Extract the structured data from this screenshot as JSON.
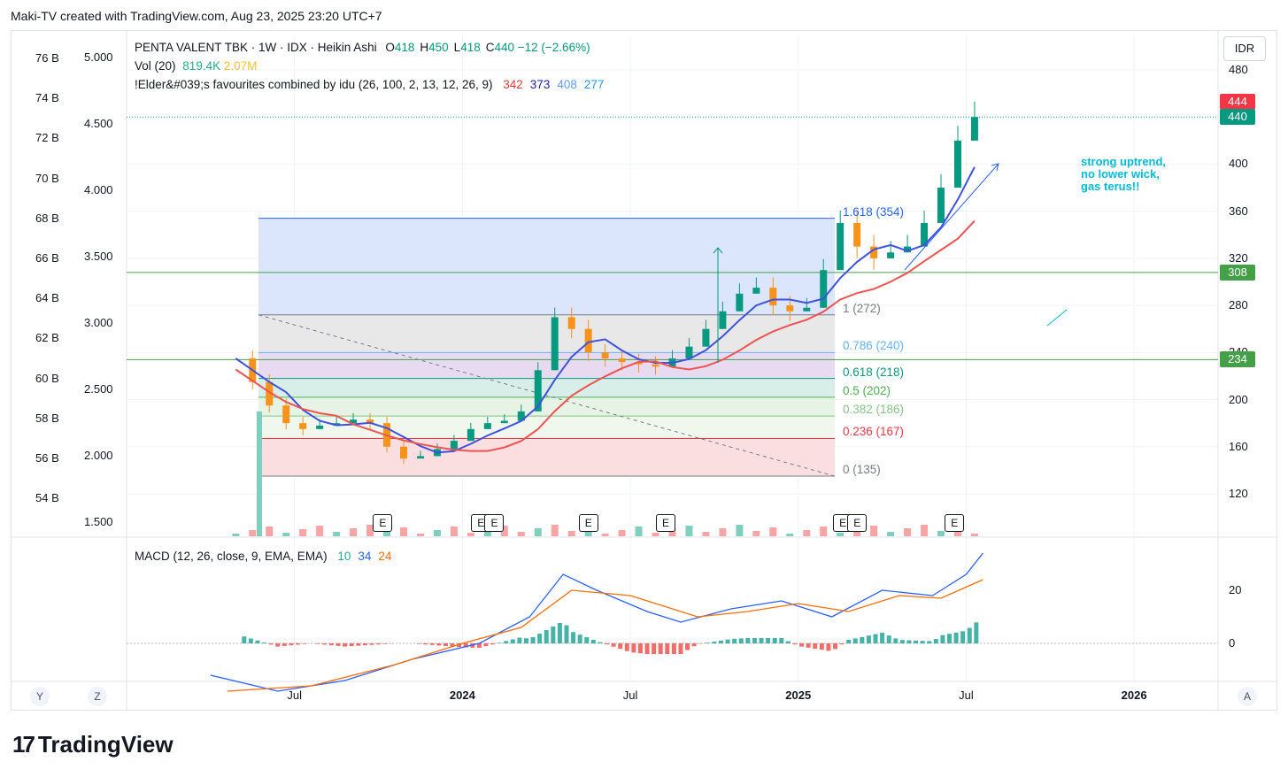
{
  "header": {
    "credit": "Maki-TV created with TradingView.com, Aug 23, 2025 23:20 UTC+7"
  },
  "legend": {
    "symbol": "PENTA VALENT TBK · 1W · IDX · Heikin Ashi",
    "ohlc": [
      {
        "k": "O",
        "v": "418"
      },
      {
        "k": "H",
        "v": "450"
      },
      {
        "k": "L",
        "v": "418"
      },
      {
        "k": "C",
        "v": "440"
      }
    ],
    "change": "−12 (−2.66%)",
    "vol_label": "Vol (20)",
    "vol_value": "819.4K",
    "vol_ma": "2.07M",
    "indicator_label": "!Elder&#039;s favourites combined by idu (26, 100, 2, 13, 12, 26, 9)",
    "indicator_values": [
      {
        "v": "342",
        "color": "#e53935"
      },
      {
        "v": "373",
        "color": "#1e22aa"
      },
      {
        "v": "408",
        "color": "#5b9cf6"
      },
      {
        "v": "277",
        "color": "#2196f3"
      }
    ],
    "macd_label": "MACD (12, 26, close, 9, EMA, EMA)",
    "macd_values": [
      {
        "v": "10",
        "color": "#22ab94"
      },
      {
        "v": "34",
        "color": "#2962ff"
      },
      {
        "v": "24",
        "color": "#ff6d00"
      }
    ]
  },
  "currency": "IDR",
  "right_axis": {
    "ticks": [
      {
        "v": 120,
        "label": "120"
      },
      {
        "v": 160,
        "label": "160"
      },
      {
        "v": 200,
        "label": "200"
      },
      {
        "v": 240,
        "label": "240"
      },
      {
        "v": 280,
        "label": "280"
      },
      {
        "v": 320,
        "label": "320"
      },
      {
        "v": 360,
        "label": "360"
      },
      {
        "v": 400,
        "label": "400"
      },
      {
        "v": 480,
        "label": "480"
      }
    ],
    "tags": [
      {
        "value": "444",
        "price": 444,
        "color": "#f23645"
      },
      {
        "value": "440",
        "price": 440,
        "color": "#089981"
      },
      {
        "value": "308",
        "price": 308,
        "color": "#43a047"
      },
      {
        "value": "234",
        "price": 234,
        "color": "#43a047"
      }
    ]
  },
  "left_axis_outer": [
    "76 B",
    "74 B",
    "72 B",
    "70 B",
    "68 B",
    "66 B",
    "64 B",
    "62 B",
    "60 B",
    "58 B",
    "56 B",
    "54 B"
  ],
  "left_axis_inner": [
    "5.000",
    "4.500",
    "4.000",
    "3.500",
    "3.000",
    "2.500",
    "2.000",
    "1.500"
  ],
  "macd_axis": [
    {
      "v": 20,
      "label": "20"
    },
    {
      "v": 0,
      "label": "0"
    }
  ],
  "time_axis": [
    {
      "label": "Jul",
      "t": 0.2,
      "bold": false
    },
    {
      "label": "2024",
      "t": 0.4,
      "bold": true
    },
    {
      "label": "Jul",
      "t": 0.6,
      "bold": false
    },
    {
      "label": "2025",
      "t": 0.8,
      "bold": true
    },
    {
      "label": "Jul",
      "t": 1.0,
      "bold": false
    },
    {
      "label": "2026",
      "t": 1.2,
      "bold": true
    }
  ],
  "fib_levels": [
    {
      "ratio": "1.618",
      "price": 354,
      "label": "1.618 (354)",
      "color": "#2962ff"
    },
    {
      "ratio": "1",
      "price": 272,
      "label": "1 (272)",
      "color": "#787b86"
    },
    {
      "ratio": "0.786",
      "price": 240,
      "label": "0.786 (240)",
      "color": "#64b5f6"
    },
    {
      "ratio": "0.618",
      "price": 218,
      "label": "0.618 (218)",
      "color": "#089981"
    },
    {
      "ratio": "0.5",
      "price": 202,
      "label": "0.5 (202)",
      "color": "#4caf50"
    },
    {
      "ratio": "0.382",
      "price": 186,
      "label": "0.382 (186)",
      "color": "#81c784"
    },
    {
      "ratio": "0.236",
      "price": 167,
      "label": "0.236 (167)",
      "color": "#f23645"
    },
    {
      "ratio": "0",
      "price": 135,
      "label": "0 (135)",
      "color": "#787b86"
    }
  ],
  "annotation": {
    "lines": [
      "strong uptrend,",
      "no lower wick,",
      "gas terus!!"
    ],
    "color": "#00bcd4"
  },
  "earnings_marker": "E",
  "earnings_t": [
    0.304,
    0.421,
    0.437,
    0.549,
    0.641,
    0.852,
    0.869,
    0.985
  ],
  "corner_buttons": {
    "y": "Y",
    "z": "Z",
    "a": "A"
  },
  "logo_text": "TradingView",
  "chart_data": {
    "type": "candlestick",
    "title": "PENTA VALENT TBK · 1W · IDX · Heikin Ashi",
    "ylim": [
      100,
      500
    ],
    "series_close": [
      {
        "t": 0.13,
        "v": 235
      },
      {
        "t": 0.15,
        "v": 215
      },
      {
        "t": 0.17,
        "v": 195
      },
      {
        "t": 0.19,
        "v": 180
      },
      {
        "t": 0.21,
        "v": 175
      },
      {
        "t": 0.23,
        "v": 178
      },
      {
        "t": 0.25,
        "v": 180
      },
      {
        "t": 0.27,
        "v": 183
      },
      {
        "t": 0.29,
        "v": 180
      },
      {
        "t": 0.31,
        "v": 160
      },
      {
        "t": 0.33,
        "v": 150
      },
      {
        "t": 0.35,
        "v": 152
      },
      {
        "t": 0.37,
        "v": 158
      },
      {
        "t": 0.39,
        "v": 165
      },
      {
        "t": 0.41,
        "v": 175
      },
      {
        "t": 0.43,
        "v": 180
      },
      {
        "t": 0.45,
        "v": 182
      },
      {
        "t": 0.47,
        "v": 190
      },
      {
        "t": 0.49,
        "v": 225
      },
      {
        "t": 0.51,
        "v": 270
      },
      {
        "t": 0.53,
        "v": 260
      },
      {
        "t": 0.55,
        "v": 240
      },
      {
        "t": 0.57,
        "v": 235
      },
      {
        "t": 0.59,
        "v": 232
      },
      {
        "t": 0.61,
        "v": 230
      },
      {
        "t": 0.63,
        "v": 228
      },
      {
        "t": 0.65,
        "v": 235
      },
      {
        "t": 0.67,
        "v": 245
      },
      {
        "t": 0.69,
        "v": 260
      },
      {
        "t": 0.71,
        "v": 275
      },
      {
        "t": 0.73,
        "v": 290
      },
      {
        "t": 0.75,
        "v": 295
      },
      {
        "t": 0.77,
        "v": 280
      },
      {
        "t": 0.79,
        "v": 275
      },
      {
        "t": 0.81,
        "v": 278
      },
      {
        "t": 0.83,
        "v": 310
      },
      {
        "t": 0.85,
        "v": 350
      },
      {
        "t": 0.87,
        "v": 330
      },
      {
        "t": 0.89,
        "v": 320
      },
      {
        "t": 0.91,
        "v": 325
      },
      {
        "t": 0.93,
        "v": 330
      },
      {
        "t": 0.95,
        "v": 350
      },
      {
        "t": 0.97,
        "v": 380
      },
      {
        "t": 0.99,
        "v": 420
      },
      {
        "t": 1.01,
        "v": 440
      }
    ],
    "macd_line": [
      {
        "t": 0.1,
        "v": -12
      },
      {
        "t": 0.18,
        "v": -18
      },
      {
        "t": 0.26,
        "v": -14
      },
      {
        "t": 0.34,
        "v": -6
      },
      {
        "t": 0.42,
        "v": 0
      },
      {
        "t": 0.48,
        "v": 10
      },
      {
        "t": 0.52,
        "v": 26
      },
      {
        "t": 0.56,
        "v": 20
      },
      {
        "t": 0.62,
        "v": 12
      },
      {
        "t": 0.66,
        "v": 8
      },
      {
        "t": 0.72,
        "v": 13
      },
      {
        "t": 0.78,
        "v": 16
      },
      {
        "t": 0.84,
        "v": 10
      },
      {
        "t": 0.9,
        "v": 20
      },
      {
        "t": 0.96,
        "v": 18
      },
      {
        "t": 1.0,
        "v": 26
      },
      {
        "t": 1.02,
        "v": 34
      }
    ],
    "signal_line": [
      {
        "t": 0.12,
        "v": -18
      },
      {
        "t": 0.22,
        "v": -16
      },
      {
        "t": 0.32,
        "v": -8
      },
      {
        "t": 0.4,
        "v": 0
      },
      {
        "t": 0.47,
        "v": 6
      },
      {
        "t": 0.53,
        "v": 20
      },
      {
        "t": 0.6,
        "v": 18
      },
      {
        "t": 0.68,
        "v": 10
      },
      {
        "t": 0.74,
        "v": 12
      },
      {
        "t": 0.8,
        "v": 15
      },
      {
        "t": 0.86,
        "v": 12
      },
      {
        "t": 0.92,
        "v": 18
      },
      {
        "t": 0.97,
        "v": 17
      },
      {
        "t": 1.02,
        "v": 24
      }
    ]
  }
}
